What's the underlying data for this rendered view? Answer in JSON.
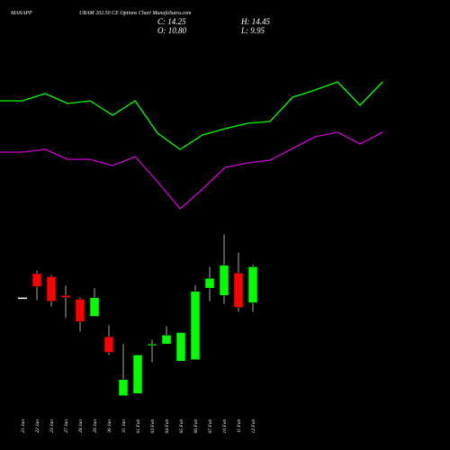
{
  "header": {
    "symbol": "MANAPP",
    "title": "URAM 202.50 CE Options Chart MunafaSutra.com",
    "close": "C: 14.25",
    "high": "H: 14.45",
    "open": "O: 10.80",
    "low": "L: 9.95"
  },
  "chart_data": [
    {
      "type": "line",
      "ylim": [
        0,
        500
      ],
      "series": [
        {
          "color": "#00ff00",
          "values": [
            388,
            388,
            396,
            385,
            388,
            372,
            388,
            352,
            334,
            350,
            357,
            363,
            365,
            392,
            400,
            409,
            383,
            409
          ]
        },
        {
          "color": "#cc00cc",
          "values": [
            331,
            331,
            334,
            323,
            323,
            316,
            326,
            298,
            268,
            290,
            314,
            319,
            322,
            335,
            348,
            353,
            340,
            353
          ]
        }
      ]
    },
    {
      "type": "candlestick",
      "ylim": [
        -3.3,
        39.8
      ],
      "up_color": "#00ff00",
      "down_color": "#ff0000",
      "flat_color": "#ffffff",
      "categories": [
        "21 Jan",
        "22 Jan",
        "23 Jan",
        "27 Jan",
        "28 Jan",
        "29 Jan",
        "30 Jan",
        "31 Jan",
        "01 Feb",
        "03 Feb",
        "04 Feb",
        "05 Feb",
        "06 Feb",
        "07 Feb",
        "10 Feb",
        "11 Feb",
        "12 Feb"
      ],
      "open": [
        11.3,
        13.6,
        13.3,
        11.5,
        11.15,
        9.5,
        7.55,
        1.9,
        2.1,
        6.7,
        6.85,
        5.2,
        5.35,
        12.2,
        11.5,
        13.65,
        10.8
      ],
      "high": [
        11.3,
        13.85,
        13.45,
        12.45,
        11.3,
        12.2,
        8.65,
        6.85,
        5.8,
        7.25,
        8.55,
        7.95,
        12.5,
        14.25,
        17.35,
        15.6,
        14.45
      ],
      "low": [
        11.3,
        11.05,
        10.45,
        9.35,
        8.05,
        9.5,
        5.8,
        1.9,
        2.1,
        5.1,
        6.85,
        5.2,
        5.35,
        10.95,
        10.7,
        9.95,
        9.95
      ],
      "close": [
        11.3,
        12.35,
        10.95,
        11.3,
        9.0,
        11.3,
        6.05,
        3.45,
        5.8,
        6.85,
        7.7,
        7.95,
        11.9,
        13.15,
        14.4,
        10.35,
        14.25
      ]
    }
  ]
}
